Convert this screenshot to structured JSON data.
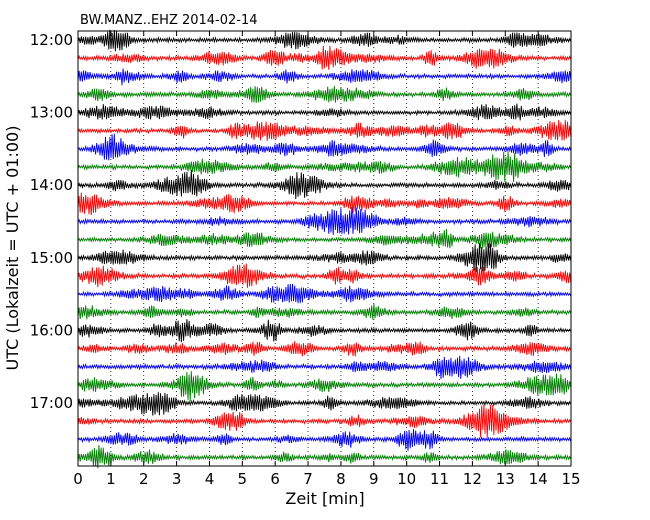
{
  "chart_data": {
    "type": "line",
    "title": "BW.MANZ..EHZ 2014-02-14",
    "xlabel": "Zeit  [min]",
    "ylabel": "UTC (Lokalzeit = UTC + 01:00)",
    "xlim": [
      0,
      15
    ],
    "x_ticks": [
      "0",
      "1",
      "2",
      "3",
      "4",
      "5",
      "6",
      "7",
      "8",
      "9",
      "10",
      "11",
      "12",
      "13",
      "14",
      "15"
    ],
    "y_ticks": [
      "12:00",
      "13:00",
      "14:00",
      "15:00",
      "16:00",
      "17:00"
    ],
    "grid": "vertical dotted",
    "trace_colors": [
      "#000000",
      "#ff0000",
      "#0000ff",
      "#008000"
    ],
    "rows": [
      {
        "start": "12:00"
      },
      {
        "start": "12:15"
      },
      {
        "start": "12:30"
      },
      {
        "start": "12:45"
      },
      {
        "start": "13:00"
      },
      {
        "start": "13:15"
      },
      {
        "start": "13:30"
      },
      {
        "start": "13:45"
      },
      {
        "start": "14:00"
      },
      {
        "start": "14:15"
      },
      {
        "start": "14:30"
      },
      {
        "start": "14:45"
      },
      {
        "start": "15:00"
      },
      {
        "start": "15:15"
      },
      {
        "start": "15:30"
      },
      {
        "start": "15:45"
      },
      {
        "start": "16:00"
      },
      {
        "start": "16:15"
      },
      {
        "start": "16:30"
      },
      {
        "start": "16:45"
      },
      {
        "start": "17:00"
      },
      {
        "start": "17:15"
      },
      {
        "start": "17:30"
      },
      {
        "start": "17:45"
      }
    ]
  }
}
